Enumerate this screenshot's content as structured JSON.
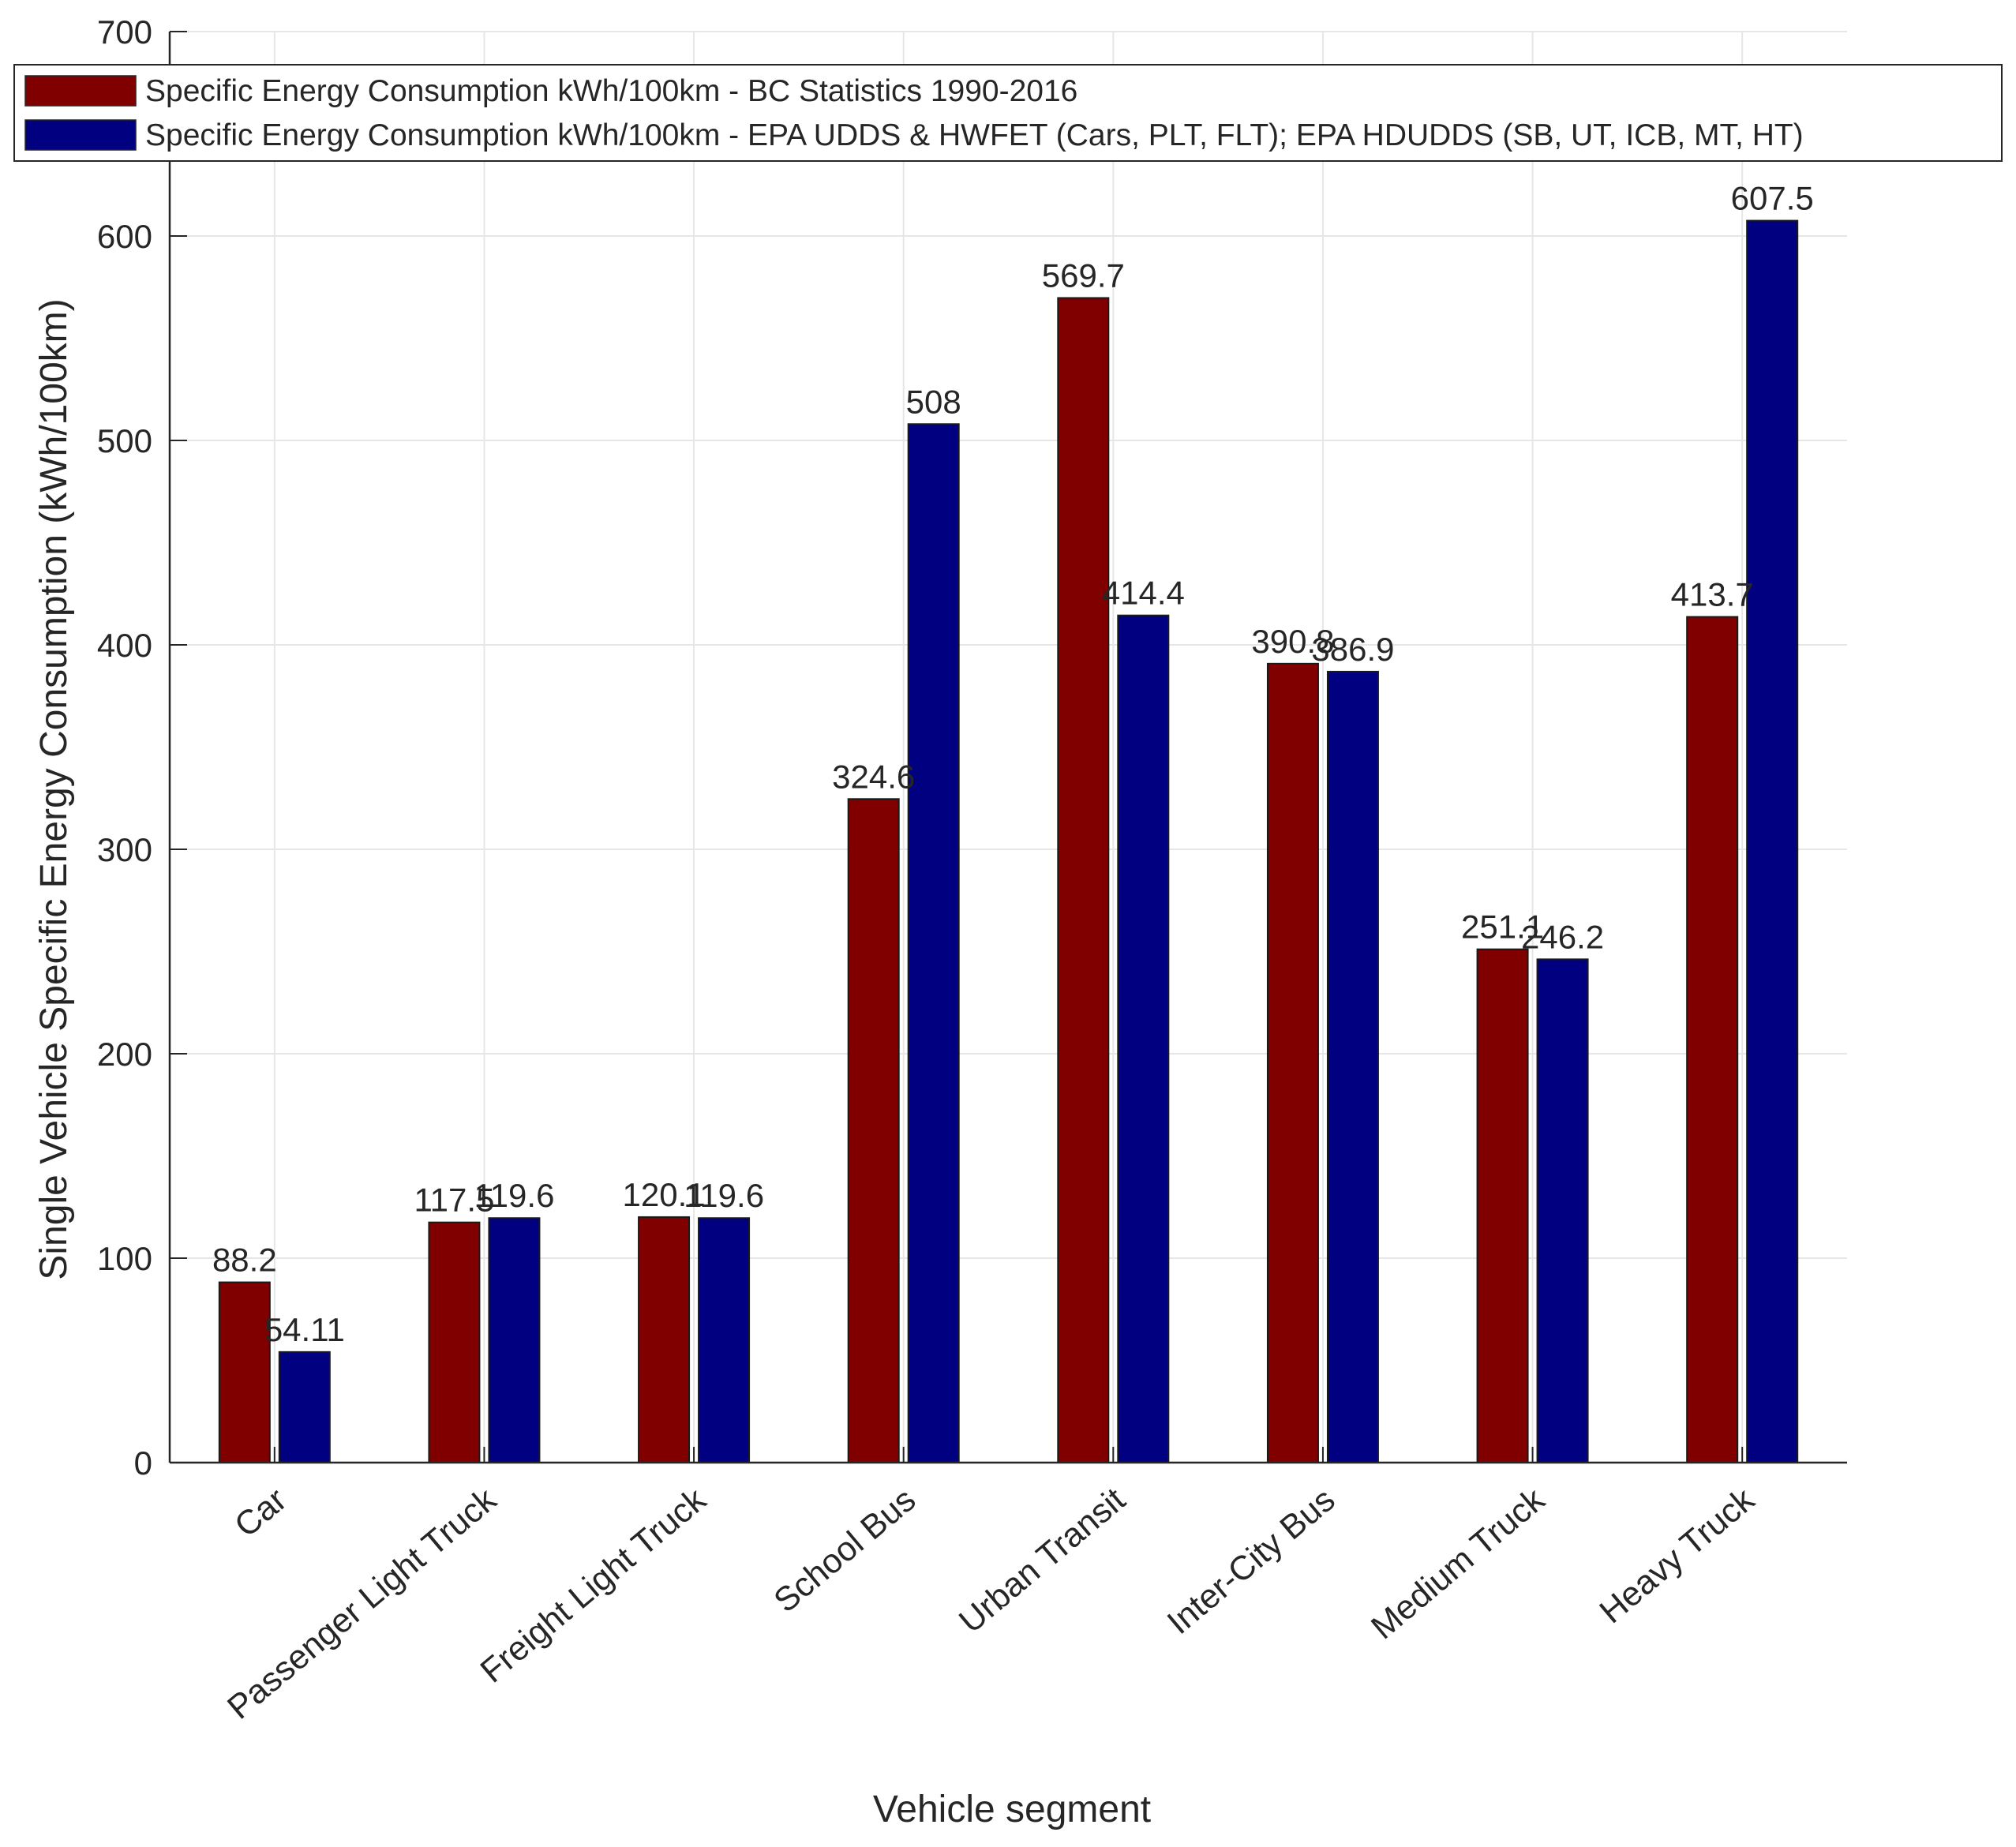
{
  "chart_data": {
    "type": "bar",
    "title": "",
    "xlabel": "Vehicle segment",
    "ylabel": "Single Vehicle Specific Energy Consumption (kWh/100km)",
    "ylim": [
      0,
      700
    ],
    "yticks": [
      0,
      100,
      200,
      300,
      400,
      500,
      600,
      700
    ],
    "grid": true,
    "legend_position": "top",
    "categories": [
      "Car",
      "Passenger Light Truck",
      "Freight Light Truck",
      "School Bus",
      "Urban Transit",
      "Inter-City Bus",
      "Medium Truck",
      "Heavy Truck"
    ],
    "series": [
      {
        "name": "Specific Energy Consumption kWh/100km - BC Statistics 1990-2016",
        "color": "#800000",
        "values": [
          88.2,
          117.5,
          120.1,
          324.6,
          569.7,
          390.8,
          251.1,
          413.7
        ],
        "labels": [
          "88.2",
          "117.5",
          "120.1",
          "324.6",
          "569.7",
          "390.8",
          "251.1",
          "413.7"
        ]
      },
      {
        "name": "Specific Energy Consumption kWh/100km - EPA UDDS & HWFET (Cars, PLT, FLT); EPA HDUDDS (SB, UT, ICB, MT, HT)",
        "color": "#000080",
        "values": [
          54.11,
          119.6,
          119.6,
          508,
          414.4,
          386.9,
          246.2,
          607.5
        ],
        "labels": [
          "54.11",
          "119.6",
          "119.6",
          "508",
          "414.4",
          "386.9",
          "246.2",
          "607.5"
        ]
      }
    ]
  }
}
